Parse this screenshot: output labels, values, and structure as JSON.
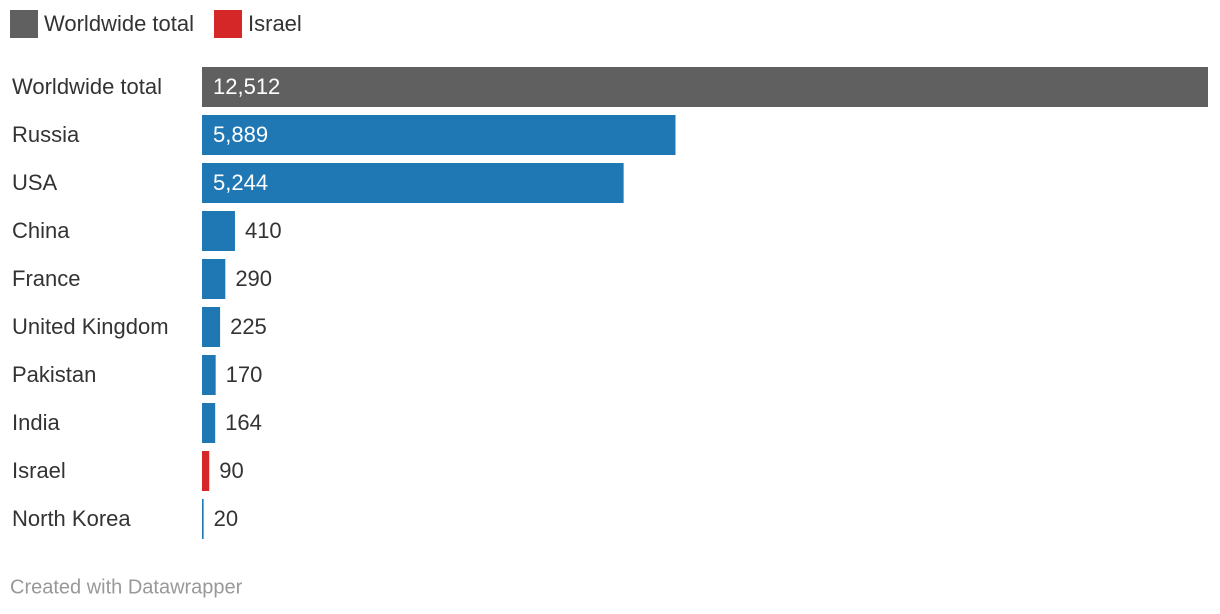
{
  "chart_data": {
    "type": "bar",
    "orientation": "horizontal",
    "legend": [
      {
        "name": "Worldwide total",
        "color": "#606060"
      },
      {
        "name": "Israel",
        "color": "#d62728"
      }
    ],
    "categories": [
      "Worldwide total",
      "Russia",
      "USA",
      "China",
      "France",
      "United Kingdom",
      "Pakistan",
      "India",
      "Israel",
      "North Korea"
    ],
    "values": [
      12512,
      5889,
      5244,
      410,
      290,
      225,
      170,
      164,
      90,
      20
    ],
    "value_labels": [
      "12,512",
      "5,889",
      "5,244",
      "410",
      "290",
      "225",
      "170",
      "164",
      "90",
      "20"
    ],
    "colors": [
      "#606060",
      "#1f77b4",
      "#1f77b4",
      "#1f77b4",
      "#1f77b4",
      "#1f77b4",
      "#1f77b4",
      "#1f77b4",
      "#d62728",
      "#1f77b4"
    ]
  },
  "footer": {
    "credit": "Created with Datawrapper"
  }
}
